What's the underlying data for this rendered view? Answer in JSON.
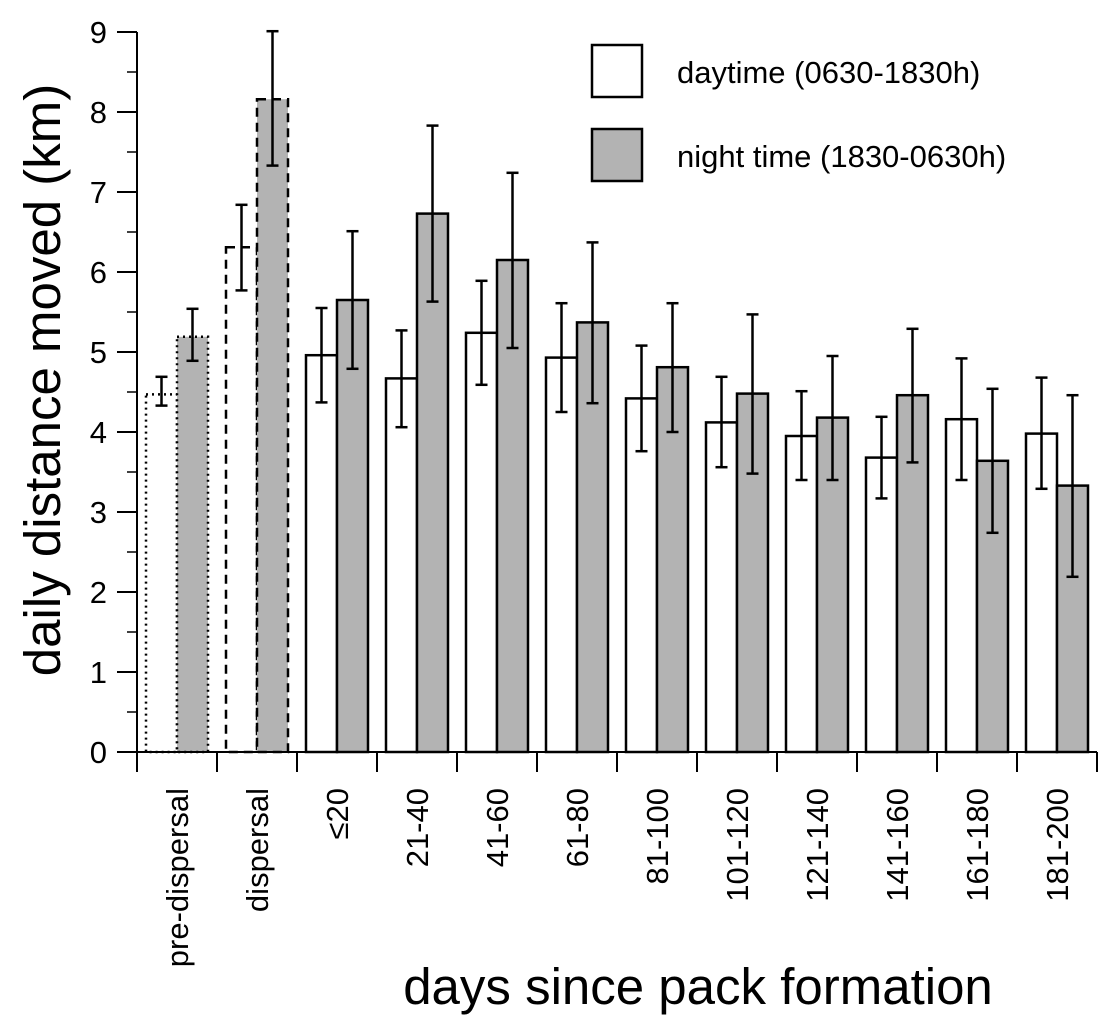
{
  "chart_data": {
    "type": "bar",
    "xlabel": "days since pack formation",
    "ylabel": "daily distance moved (km)",
    "ylim": [
      0,
      9
    ],
    "yticks": [
      "0",
      "1",
      "2",
      "3",
      "4",
      "5",
      "6",
      "7",
      "8",
      "9"
    ],
    "categories": [
      "pre-dispersal",
      "dispersal",
      "≤20",
      "21-40",
      "41-60",
      "61-80",
      "81-100",
      "101-120",
      "121-140",
      "141-160",
      "161-180",
      "181-200"
    ],
    "category_styles": [
      "dotted",
      "dashed",
      "solid",
      "solid",
      "solid",
      "solid",
      "solid",
      "solid",
      "solid",
      "solid",
      "solid",
      "solid"
    ],
    "legend_position": "top-right",
    "grid": false,
    "series": [
      {
        "name": "daytime (0630-1830h)",
        "color": "#ffffff",
        "values": [
          4.47,
          6.31,
          4.96,
          4.67,
          5.24,
          4.93,
          4.42,
          4.12,
          3.95,
          3.68,
          4.16,
          3.98
        ],
        "error_low": [
          4.33,
          5.77,
          4.37,
          4.06,
          4.59,
          4.25,
          3.76,
          3.56,
          3.4,
          3.17,
          3.4,
          3.29
        ],
        "error_high": [
          4.69,
          6.84,
          5.55,
          5.27,
          5.89,
          5.61,
          5.08,
          4.69,
          4.51,
          4.19,
          4.92,
          4.68
        ]
      },
      {
        "name": "night time (1830-0630h)",
        "color": "#b3b3b3",
        "values": [
          5.19,
          8.16,
          5.65,
          6.73,
          6.15,
          5.37,
          4.81,
          4.48,
          4.18,
          4.46,
          3.64,
          3.33
        ],
        "error_low": [
          4.89,
          7.33,
          4.79,
          5.63,
          5.05,
          4.36,
          4.0,
          3.48,
          3.4,
          3.62,
          2.74,
          2.19
        ],
        "error_high": [
          5.54,
          9.01,
          6.51,
          7.83,
          7.24,
          6.37,
          5.61,
          5.47,
          4.95,
          5.29,
          4.54,
          4.46
        ]
      }
    ]
  }
}
